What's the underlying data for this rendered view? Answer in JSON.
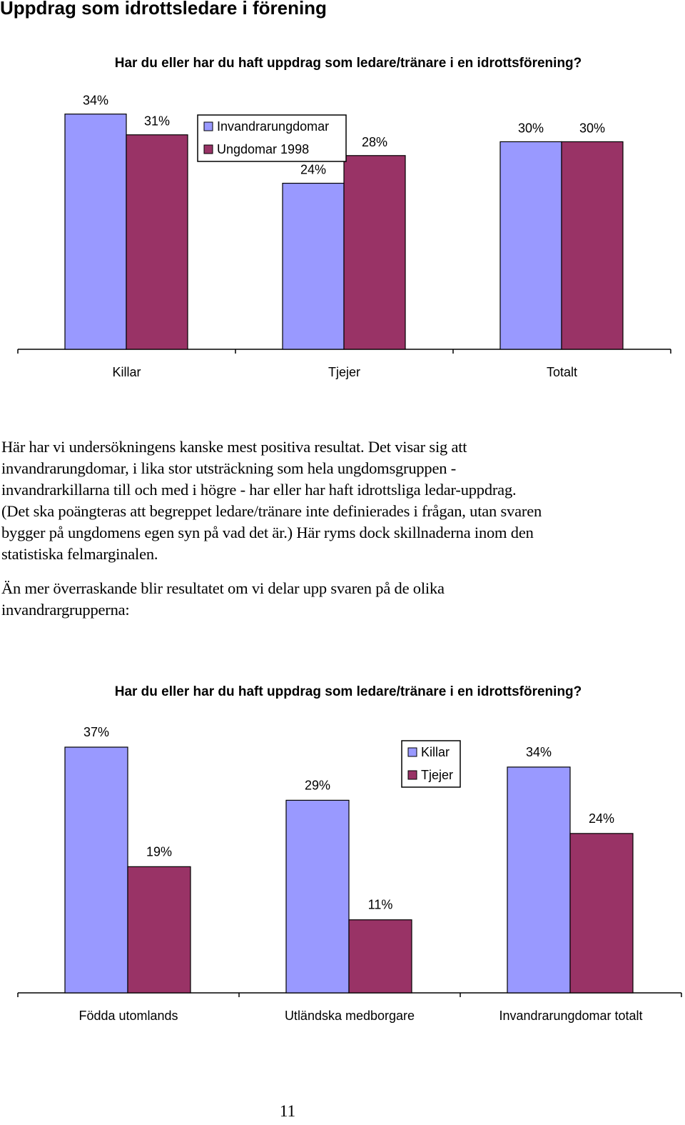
{
  "page": {
    "heading": "Uppdrag som idrottsledare i förening",
    "page_number": "11"
  },
  "paragraphs": [
    "Här har vi undersökningens kanske mest positiva resultat. Det visar sig att invandrarungdomar, i lika stor utsträckning som hela ungdomsgruppen - invandrarkillarna till och med i högre - har eller har haft idrottsliga ledar-uppdrag. (Det ska poängteras att begreppet ledare/tränare inte definierades i frågan, utan svaren bygger på ungdomens egen syn på vad det är.) Här ryms dock skillnaderna inom den statistiska felmarginalen.",
    "Än mer överraskande blir resultatet om vi delar upp svaren på de olika invandrargrupperna:"
  ],
  "colors": {
    "series_a": "#9999ff",
    "series_b": "#993366"
  },
  "chart_data": [
    {
      "type": "bar",
      "title": "Har du eller har du haft uppdrag som ledare/tränare i en idrottsförening?",
      "categories": [
        "Killar",
        "Tjejer",
        "Totalt"
      ],
      "series": [
        {
          "name": "Invandrarungdomar",
          "values": [
            34,
            24,
            30
          ],
          "labels": [
            "34%",
            "24%",
            "30%"
          ]
        },
        {
          "name": "Ungdomar 1998",
          "values": [
            31,
            28,
            30
          ],
          "labels": [
            "31%",
            "28%",
            "30%"
          ]
        }
      ],
      "ylim": [
        0,
        35
      ],
      "grid": false,
      "legend": "top-center"
    },
    {
      "type": "bar",
      "title": "Har du eller har du haft uppdrag som ledare/tränare i en idrottsförening?",
      "categories": [
        "Födda utomlands",
        "Utländska medborgare",
        "Invandrarungdomar totalt"
      ],
      "series": [
        {
          "name": "Killar",
          "values": [
            37,
            29,
            34
          ],
          "labels": [
            "37%",
            "29%",
            "34%"
          ]
        },
        {
          "name": "Tjejer",
          "values": [
            19,
            11,
            24
          ],
          "labels": [
            "19%",
            "11%",
            "24%"
          ]
        }
      ],
      "ylim": [
        0,
        37
      ],
      "grid": false,
      "legend": "top-center"
    }
  ]
}
